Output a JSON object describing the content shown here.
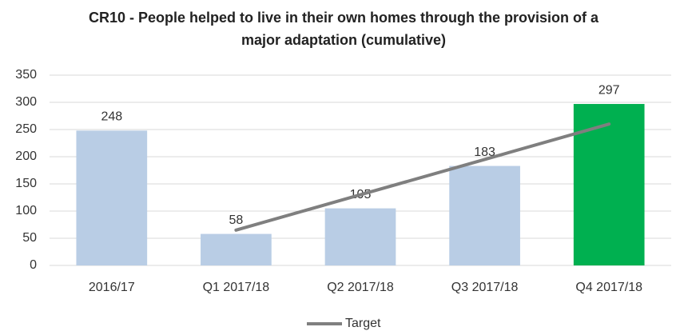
{
  "chart_data": {
    "type": "bar",
    "title": "CR10 - People helped to live in their own homes through the provision of a major adaptation (cumulative)",
    "categories": [
      "2016/17",
      "Q1 2017/18",
      "Q2 2017/18",
      "Q3 2017/18",
      "Q4 2017/18"
    ],
    "values": [
      248,
      58,
      105,
      183,
      297
    ],
    "colors": [
      "#b9cde5",
      "#b9cde5",
      "#b9cde5",
      "#b9cde5",
      "#00b050"
    ],
    "lines": [
      {
        "name": "Target",
        "color": "#7f7f7f",
        "values": [
          null,
          65,
          130,
          195,
          260
        ]
      }
    ],
    "ylim": [
      0,
      350
    ],
    "yticks": [
      0,
      50,
      100,
      150,
      200,
      250,
      300,
      350
    ],
    "grid": true,
    "legend": "bottom"
  }
}
